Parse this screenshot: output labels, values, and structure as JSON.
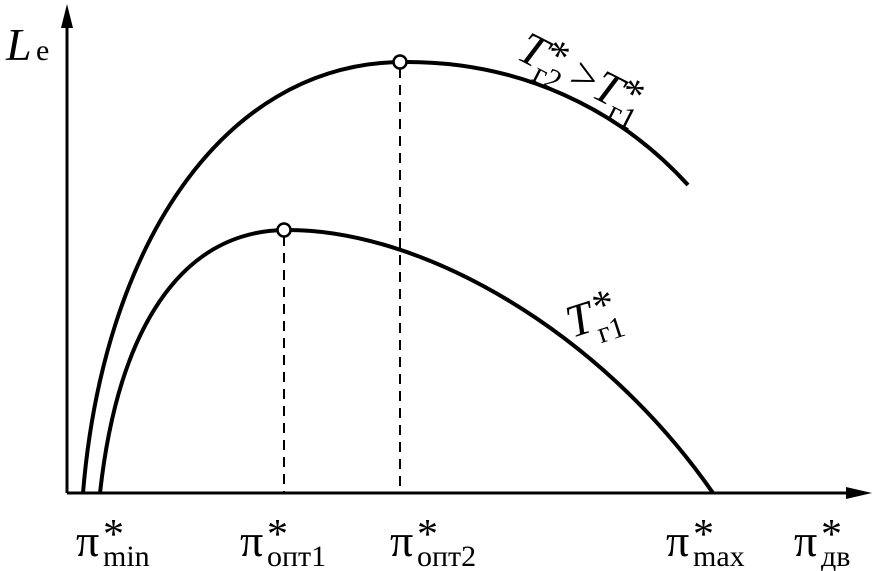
{
  "y_axis_label": {
    "main": "L",
    "sub": "e"
  },
  "x_axis_label": {
    "main": "π",
    "sup": "*",
    "sub": "дв"
  },
  "x_marks": [
    {
      "main": "π",
      "sup": "*",
      "sub": "min"
    },
    {
      "main": "π",
      "sup": "*",
      "sub": "опт1"
    },
    {
      "main": "π",
      "sup": "*",
      "sub": "опт2"
    },
    {
      "main": "π",
      "sup": "*",
      "sub": "max"
    }
  ],
  "upper_curve_label": {
    "left": {
      "main": "T",
      "sup": "*",
      "sub": "г2"
    },
    "relation": ">",
    "right": {
      "main": "T",
      "sup": "*",
      "sub": "г1"
    }
  },
  "lower_curve_label": {
    "main": "T",
    "sup": "*",
    "sub": "г1"
  }
}
